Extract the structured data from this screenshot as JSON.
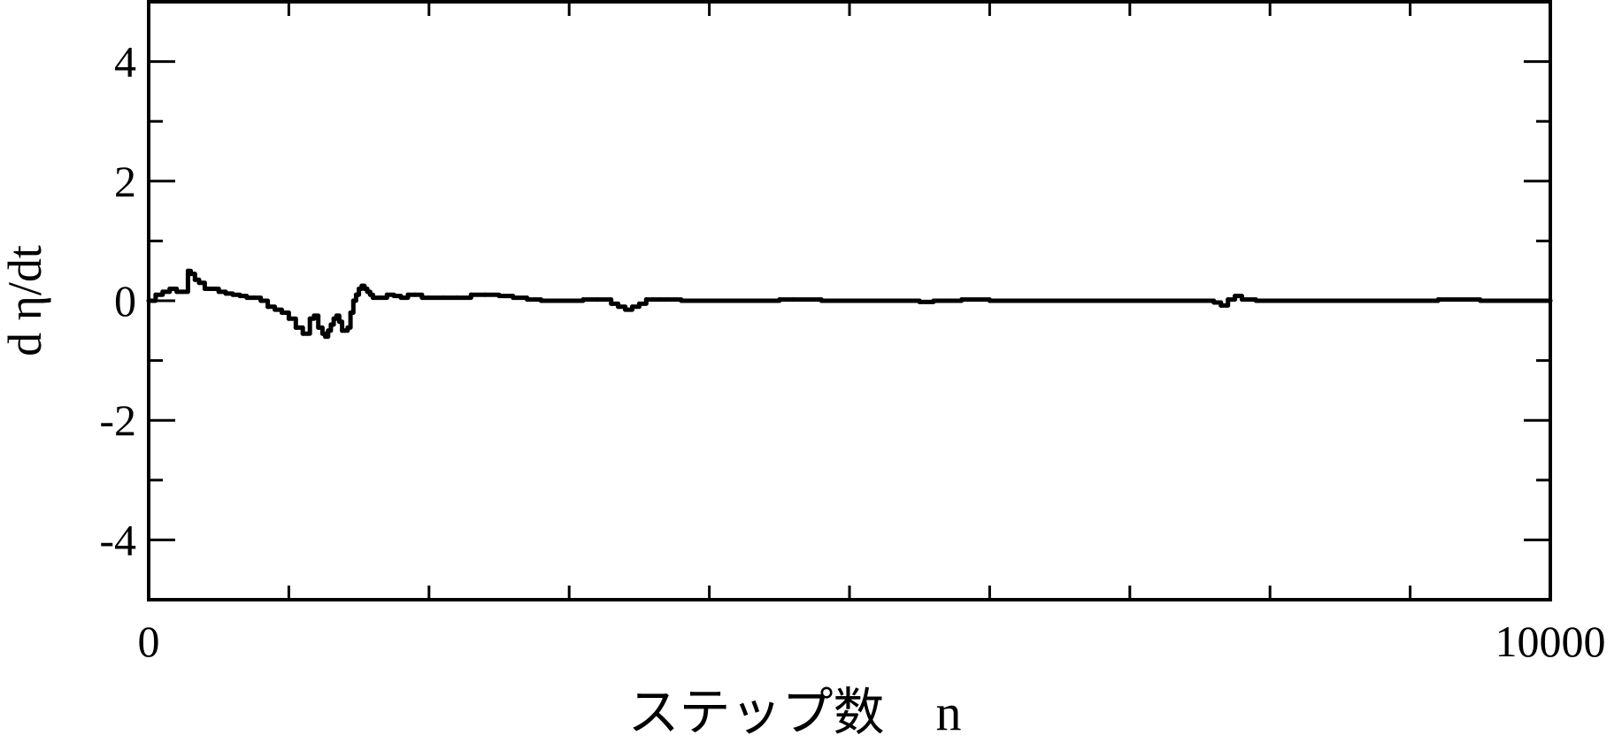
{
  "chart_data": {
    "type": "line",
    "title": "",
    "xlabel": "ステップ数　n",
    "ylabel": "d η/dt",
    "xlim": [
      0,
      10000
    ],
    "ylim": [
      -5,
      5
    ],
    "x_tick_labels": [
      "0",
      "10000"
    ],
    "x_major_ticks": [
      0,
      1000,
      2000,
      3000,
      4000,
      5000,
      6000,
      7000,
      8000,
      9000,
      10000
    ],
    "y_tick_labels": [
      "4",
      "2",
      "0",
      "-2",
      "-4"
    ],
    "y_major_ticks": [
      4,
      2,
      0,
      -2,
      -4
    ],
    "y_minor_ticks": [
      3,
      1,
      -1,
      -3
    ],
    "grid": false,
    "colors": {
      "line": "#000000",
      "axes": "#000000",
      "background": "#ffffff"
    },
    "series": [
      {
        "x": [
          0,
          50,
          100,
          150,
          200,
          240,
          280,
          300,
          330,
          360,
          400,
          450,
          500,
          550,
          600,
          650,
          700,
          750,
          800,
          850,
          900,
          950,
          1000,
          1050,
          1100,
          1150,
          1180,
          1210,
          1240,
          1260,
          1280,
          1300,
          1320,
          1340,
          1360,
          1380,
          1400,
          1420,
          1440,
          1460,
          1480,
          1500,
          1520,
          1540,
          1560,
          1580,
          1600,
          1650,
          1700,
          1750,
          1800,
          1850,
          1900,
          1950,
          2000,
          2100,
          2200,
          2300,
          2400,
          2500,
          2600,
          2700,
          2800,
          2900,
          3000,
          3100,
          3200,
          3300,
          3350,
          3400,
          3450,
          3500,
          3550,
          3600,
          3650,
          3700,
          3800,
          3900,
          4000,
          4200,
          4400,
          4500,
          4600,
          4800,
          5000,
          5200,
          5400,
          5500,
          5600,
          5800,
          6000,
          6500,
          7000,
          7500,
          7600,
          7650,
          7700,
          7750,
          7800,
          7900,
          8000,
          8500,
          9000,
          9200,
          9500,
          10000
        ],
        "y": [
          0.0,
          0.1,
          0.15,
          0.2,
          0.15,
          0.15,
          0.5,
          0.45,
          0.35,
          0.3,
          0.2,
          0.2,
          0.15,
          0.12,
          0.1,
          0.08,
          0.05,
          0.05,
          0.0,
          -0.1,
          -0.15,
          -0.2,
          -0.3,
          -0.45,
          -0.55,
          -0.3,
          -0.25,
          -0.45,
          -0.55,
          -0.6,
          -0.5,
          -0.4,
          -0.3,
          -0.25,
          -0.35,
          -0.5,
          -0.5,
          -0.45,
          -0.2,
          0.0,
          0.1,
          0.2,
          0.25,
          0.2,
          0.15,
          0.1,
          0.05,
          0.05,
          0.1,
          0.08,
          0.05,
          0.1,
          0.1,
          0.05,
          0.05,
          0.05,
          0.05,
          0.1,
          0.1,
          0.08,
          0.05,
          0.02,
          0.0,
          0.0,
          0.0,
          0.02,
          0.02,
          -0.05,
          -0.1,
          -0.15,
          -0.1,
          -0.05,
          0.02,
          0.02,
          0.02,
          0.02,
          0.0,
          0.0,
          0.0,
          0.0,
          0.0,
          0.02,
          0.02,
          0.0,
          0.0,
          0.0,
          0.0,
          -0.02,
          0.0,
          0.02,
          0.0,
          0.0,
          0.0,
          0.0,
          -0.03,
          -0.08,
          0.02,
          0.08,
          0.02,
          0.0,
          0.0,
          0.0,
          0.0,
          0.02,
          0.0,
          0.0
        ]
      }
    ]
  }
}
